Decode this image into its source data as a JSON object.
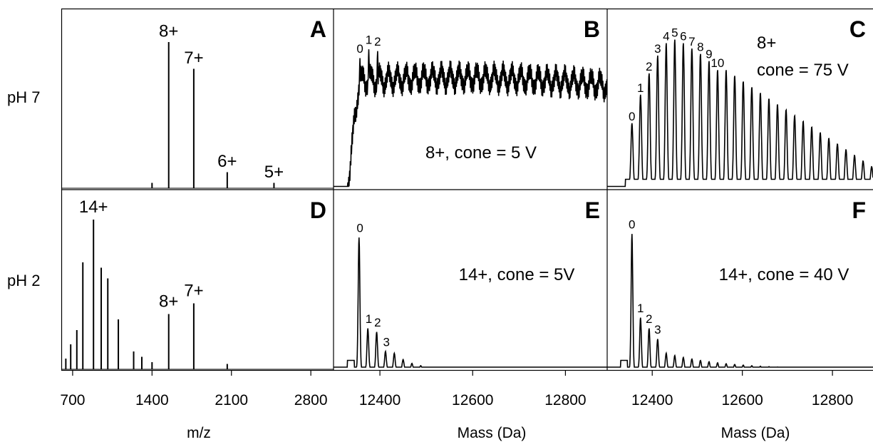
{
  "rows": [
    {
      "label": "pH 7"
    },
    {
      "label": "pH 2"
    }
  ],
  "xlabels": [
    "m/z",
    "Mass (Da)",
    "Mass (Da)"
  ],
  "chart_data": [
    {
      "panel": "A",
      "type": "bar",
      "row": 0,
      "col": 0,
      "xlim": [
        600,
        3000
      ],
      "xticks": [
        700,
        1400,
        2100,
        2800
      ],
      "peaks": [
        {
          "x": 1400,
          "y": 0.03
        },
        {
          "x": 1547,
          "y": 0.82
        },
        {
          "x": 1768,
          "y": 0.67
        },
        {
          "x": 2063,
          "y": 0.09
        },
        {
          "x": 2475,
          "y": 0.03
        }
      ],
      "labels": [
        {
          "text": "8+",
          "x": 1547,
          "y": 0.85
        },
        {
          "text": "7+",
          "x": 1768,
          "y": 0.7
        },
        {
          "text": "6+",
          "x": 2063,
          "y": 0.12
        },
        {
          "text": "5+",
          "x": 2475,
          "y": 0.06
        }
      ]
    },
    {
      "panel": "B",
      "type": "line",
      "row": 0,
      "col": 1,
      "xlim": [
        12300,
        12890
      ],
      "xticks": [
        12400,
        12600,
        12800
      ],
      "annotation": "8+, cone = 5 V",
      "peak_labels": [
        {
          "text": "0",
          "x": 12357,
          "y": 0.76
        },
        {
          "text": "1",
          "x": 12376,
          "y": 0.81
        },
        {
          "text": "2",
          "x": 12395,
          "y": 0.8
        }
      ]
    },
    {
      "panel": "C",
      "type": "line",
      "row": 0,
      "col": 2,
      "xlim": [
        12300,
        12890
      ],
      "xticks": [
        12400,
        12600,
        12800
      ],
      "annotation_lines": [
        "8+",
        "cone = 75 V"
      ],
      "peak_labels": [
        {
          "text": "0",
          "x": 12355,
          "y": 0.38
        },
        {
          "text": "1",
          "x": 12374,
          "y": 0.54
        },
        {
          "text": "2",
          "x": 12393,
          "y": 0.66
        },
        {
          "text": "3",
          "x": 12412,
          "y": 0.76
        },
        {
          "text": "4",
          "x": 12431,
          "y": 0.83
        },
        {
          "text": "5",
          "x": 12450,
          "y": 0.85
        },
        {
          "text": "6",
          "x": 12469,
          "y": 0.83
        },
        {
          "text": "7",
          "x": 12488,
          "y": 0.8
        },
        {
          "text": "8",
          "x": 12507,
          "y": 0.77
        },
        {
          "text": "9",
          "x": 12526,
          "y": 0.73
        },
        {
          "text": "10",
          "x": 12545,
          "y": 0.68
        }
      ]
    },
    {
      "panel": "D",
      "type": "bar",
      "row": 1,
      "col": 0,
      "xlim": [
        600,
        3000
      ],
      "xticks": [
        700,
        1400,
        2100,
        2800
      ],
      "peaks": [
        {
          "x": 640,
          "y": 0.06
        },
        {
          "x": 683,
          "y": 0.14
        },
        {
          "x": 737,
          "y": 0.22
        },
        {
          "x": 790,
          "y": 0.6
        },
        {
          "x": 884,
          "y": 0.84
        },
        {
          "x": 952,
          "y": 0.57
        },
        {
          "x": 1010,
          "y": 0.51
        },
        {
          "x": 1103,
          "y": 0.28
        },
        {
          "x": 1238,
          "y": 0.1
        },
        {
          "x": 1310,
          "y": 0.07
        },
        {
          "x": 1400,
          "y": 0.04
        },
        {
          "x": 1547,
          "y": 0.31
        },
        {
          "x": 1768,
          "y": 0.37
        },
        {
          "x": 2063,
          "y": 0.03
        }
      ],
      "labels": [
        {
          "text": "14+",
          "x": 884,
          "y": 0.88
        },
        {
          "text": "8+",
          "x": 1547,
          "y": 0.35
        },
        {
          "text": "7+",
          "x": 1768,
          "y": 0.41
        }
      ]
    },
    {
      "panel": "E",
      "type": "line",
      "row": 1,
      "col": 1,
      "xlim": [
        12300,
        12890
      ],
      "xticks": [
        12400,
        12600,
        12800
      ],
      "annotation": "14+, cone = 5V",
      "peak_labels": [
        {
          "text": "0",
          "x": 12357,
          "y": 0.77
        },
        {
          "text": "1",
          "x": 12376,
          "y": 0.26
        },
        {
          "text": "2",
          "x": 12395,
          "y": 0.24
        },
        {
          "text": "3",
          "x": 12414,
          "y": 0.13
        }
      ]
    },
    {
      "panel": "F",
      "type": "line",
      "row": 1,
      "col": 2,
      "xlim": [
        12300,
        12890
      ],
      "xticks": [
        12400,
        12600,
        12800
      ],
      "annotation": "14+, cone = 40 V",
      "peak_labels": [
        {
          "text": "0",
          "x": 12355,
          "y": 0.79
        },
        {
          "text": "1",
          "x": 12374,
          "y": 0.32
        },
        {
          "text": "2",
          "x": 12393,
          "y": 0.26
        },
        {
          "text": "3",
          "x": 12412,
          "y": 0.2
        }
      ]
    }
  ]
}
